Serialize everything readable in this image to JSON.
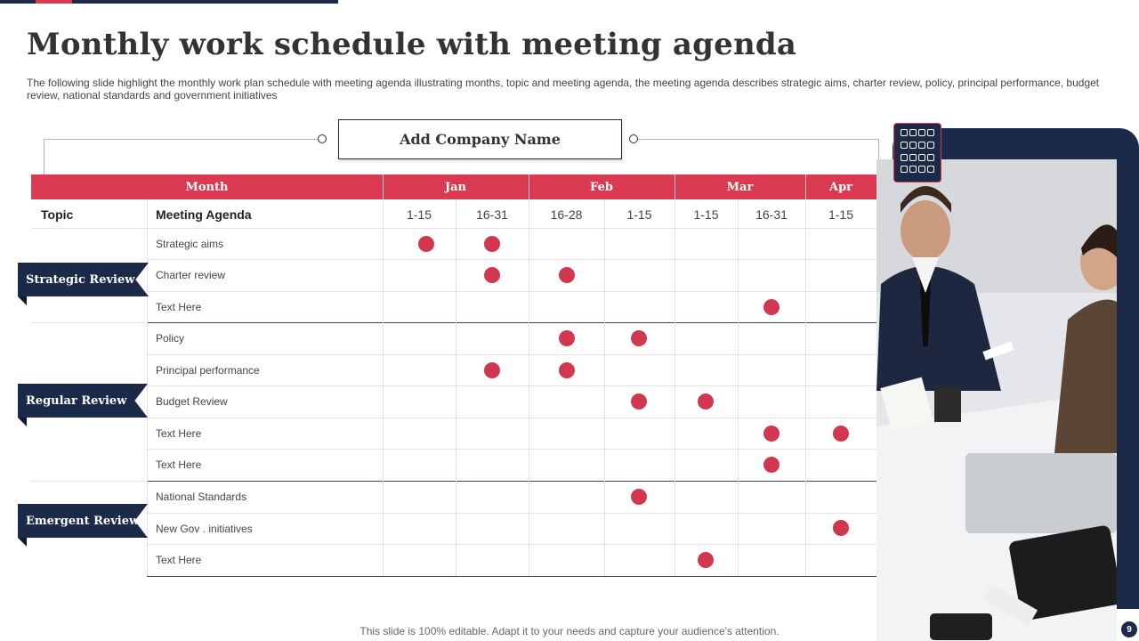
{
  "slide": {
    "title": "Monthly work schedule with meeting agenda",
    "description": "The following slide highlight the monthly work plan schedule with meeting agenda illustrating months, topic and meeting agenda, the meeting agenda describes strategic aims, charter review, policy, principal performance, budget review, national standards and government initiatives",
    "company": "Add Company Name",
    "footer": "This slide is 100% editable. Adapt it to your needs and capture your audience's attention.",
    "page_number": "9"
  },
  "colors": {
    "navy": "#1c2a4a",
    "red": "#d93a52"
  },
  "table": {
    "month_header": "Month",
    "topic_header": "Topic",
    "agenda_header": "Meeting Agenda",
    "months": [
      "Jan",
      "Feb",
      "Mar",
      "Apr"
    ],
    "periods": [
      "1-15",
      "16-31",
      "16-28",
      "1-15",
      "1-15",
      "16-31",
      "1-15"
    ],
    "groups": [
      {
        "label": "Strategic Review",
        "items": [
          "Strategic aims",
          "Charter review",
          "Text Here"
        ]
      },
      {
        "label": "Regular Review",
        "items": [
          "Policy",
          "Principal performance",
          "Budget Review",
          "Text Here",
          "Text Here"
        ]
      },
      {
        "label": "Emergent Review",
        "items": [
          "National Standards",
          "New Gov . initiatives",
          "Text Here"
        ]
      }
    ],
    "schedule": [
      {
        "agenda_row": 1,
        "periods": [
          1,
          2
        ]
      },
      {
        "agenda_row": 2,
        "periods": [
          2,
          3
        ]
      },
      {
        "agenda_row": 3,
        "periods": [
          6
        ]
      },
      {
        "agenda_row": 4,
        "periods": [
          3,
          4
        ]
      },
      {
        "agenda_row": 5,
        "periods": [
          2,
          3
        ]
      },
      {
        "agenda_row": 6,
        "periods": [
          4,
          5
        ]
      },
      {
        "agenda_row": 7,
        "periods": [
          6,
          7
        ]
      },
      {
        "agenda_row": 8,
        "periods": [
          6
        ]
      },
      {
        "agenda_row": 9,
        "periods": [
          4
        ]
      },
      {
        "agenda_row": 10,
        "periods": [
          7
        ]
      },
      {
        "agenda_row": 11,
        "periods": [
          5
        ]
      }
    ]
  },
  "icons": {
    "grid": "grid-icon",
    "photo": "business-meeting-photo"
  }
}
